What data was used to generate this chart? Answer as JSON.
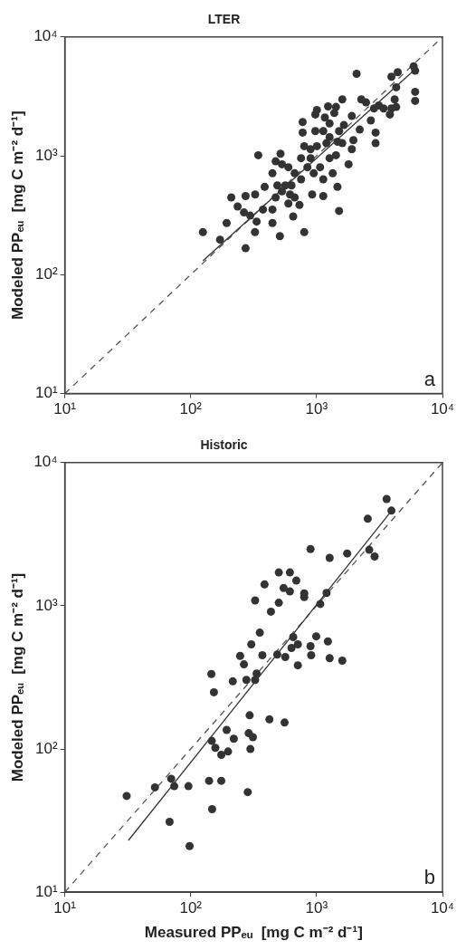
{
  "chart_data": [
    {
      "type": "scatter",
      "title": "LTER",
      "ylabel": "Modeled PPₑᵤ  [mg C m⁻² d⁻¹]",
      "annotations": [
        "a"
      ],
      "xlim": [
        10,
        10000
      ],
      "ylim": [
        10,
        10000
      ],
      "xticks": [
        {
          "value": 10,
          "label": "10¹"
        },
        {
          "value": 100,
          "label": "10²"
        },
        {
          "value": 1000,
          "label": "10³"
        },
        {
          "value": 10000,
          "label": "10⁴"
        }
      ],
      "yticks": [
        {
          "value": 10,
          "label": "10¹"
        },
        {
          "value": 100,
          "label": "10²"
        },
        {
          "value": 1000,
          "label": "10³"
        },
        {
          "value": 10000,
          "label": "10⁴"
        }
      ],
      "log": "xy",
      "grid": false,
      "legend": false,
      "series": [
        {
          "marker": "circle",
          "color": "#333333",
          "x": [
            125,
            171,
            193,
            273,
            210,
            273,
            325,
            236,
            265,
            297,
            334,
            324,
            446,
            511,
            652,
            798,
            344,
            387,
            446,
            517,
            531,
            473,
            531,
            597,
            632,
            670,
            731,
            753,
            845,
            896,
            896,
            949,
            1006,
            1067,
            1130,
            922,
            1130,
            1268,
            1343,
            1465,
            1509,
            1796,
            1426,
            1467,
            1196,
            1268,
            1509,
            1600,
            1905,
            1960,
            2201,
            1905,
            1648,
            1268,
            1130,
            977,
            775,
            775,
            977,
            1163,
            1006,
            1233,
            1426,
            1600,
            1382,
            2080,
            2266,
            2472,
            2697,
            2857,
            2943,
            2943,
            3119,
            3404,
            3822,
            3931,
            4171,
            4290,
            3931,
            4413,
            4290,
            5902,
            6068,
            6068,
            6068,
            473,
            597,
            670,
            488,
            564,
            615,
            446,
            375,
            753,
            798
          ],
          "values": [
            228,
            197,
            272,
            167,
            447,
            459,
            473,
            375,
            334,
            314,
            280,
            228,
            272,
            211,
            309,
            228,
            1012,
            548,
            713,
            1042,
            849,
            447,
            502,
            397,
            564,
            447,
            386,
            634,
            802,
            955,
            1138,
            713,
            1205,
            802,
            634,
            473,
            459,
            955,
            713,
            548,
            344,
            849,
            1012,
            1315,
            1278,
            1437,
            1614,
            1278,
            1138,
            1355,
            1663,
            2163,
            1815,
            1871,
            1614,
            1614,
            1568,
            1925,
            2227,
            2101,
            2432,
            2606,
            2576,
            2983,
            2291,
            4898,
            2983,
            2814,
            1983,
            2502,
            1568,
            1278,
            2654,
            2502,
            2227,
            2502,
            2983,
            2576,
            4623,
            5050,
            3770,
            5672,
            5197,
            3454,
            2897,
            900,
            802,
            713,
            564,
            564,
            473,
            353,
            353,
            955,
            1205
          ]
        },
        {
          "type": "line",
          "marker": "none",
          "line_style": "solid",
          "color": "#333333",
          "x": [
            125,
            5900
          ],
          "values": [
            131,
            5200
          ]
        },
        {
          "type": "line",
          "marker": "none",
          "line_style": "dashed",
          "color": "#555555",
          "x": [
            10,
            10000
          ],
          "values": [
            10,
            10000
          ]
        }
      ]
    },
    {
      "type": "scatter",
      "title": "Historic",
      "xlabel": "Measured PPₑᵤ  [mg C m⁻² d⁻¹]",
      "ylabel": "Modeled PPₑᵤ  [mg C m⁻² d⁻¹]",
      "annotations": [
        "b"
      ],
      "xlim": [
        10,
        10000
      ],
      "ylim": [
        10,
        10000
      ],
      "xticks": [
        {
          "value": 10,
          "label": "10¹"
        },
        {
          "value": 100,
          "label": "10²"
        },
        {
          "value": 1000,
          "label": "10³"
        },
        {
          "value": 10000,
          "label": "10⁴"
        }
      ],
      "yticks": [
        {
          "value": 10,
          "label": "10¹"
        },
        {
          "value": 100,
          "label": "10²"
        },
        {
          "value": 1000,
          "label": "10³"
        },
        {
          "value": 10000,
          "label": "10⁴"
        }
      ],
      "log": "xy",
      "grid": false,
      "legend": false,
      "series": [
        {
          "marker": "circle",
          "color": "#333333",
          "x": [
            3600,
            3930,
            2550,
            2620,
            2890,
            1750,
            1270,
            895,
            501,
            614,
            690,
            386,
            547,
            614,
            798,
            798,
            325,
            501,
            434,
            1070,
            1200,
            354,
            303,
            371,
            247,
            265,
            277,
            216,
            146,
            153,
            334,
            325,
            487,
            564,
            632,
            710,
            652,
            895,
            906,
            993,
            1230,
            1270,
            1600,
            710,
            294,
            422,
            557,
            289,
            312,
            298,
            147,
            193,
            198,
            175,
            157,
            220,
            140,
            175,
            148,
            284,
            96,
            70,
            74,
            52,
            31,
            68,
            98
          ],
          "values": [
            5570,
            4620,
            4050,
            2460,
            2210,
            2320,
            2160,
            2490,
            1710,
            1710,
            1500,
            1410,
            1330,
            1260,
            1220,
            1150,
            1090,
            1050,
            910,
            1030,
            1230,
            649,
            538,
            452,
            447,
            390,
            304,
            297,
            334,
            249,
            337,
            304,
            457,
            439,
            508,
            538,
            605,
            523,
            452,
            612,
            564,
            431,
            414,
            384,
            172,
            161,
            153,
            129,
            121,
            100,
            114,
            136,
            96,
            91,
            102,
            118,
            60,
            60,
            38,
            50,
            55,
            62,
            55,
            54,
            47,
            31,
            21
          ]
        },
        {
          "type": "line",
          "marker": "none",
          "line_style": "solid",
          "color": "#333333",
          "x": [
            32,
            4000
          ],
          "values": [
            23,
            4680
          ]
        },
        {
          "type": "line",
          "marker": "none",
          "line_style": "dashed",
          "color": "#555555",
          "x": [
            10,
            10000
          ],
          "values": [
            10,
            10000
          ]
        }
      ]
    }
  ]
}
